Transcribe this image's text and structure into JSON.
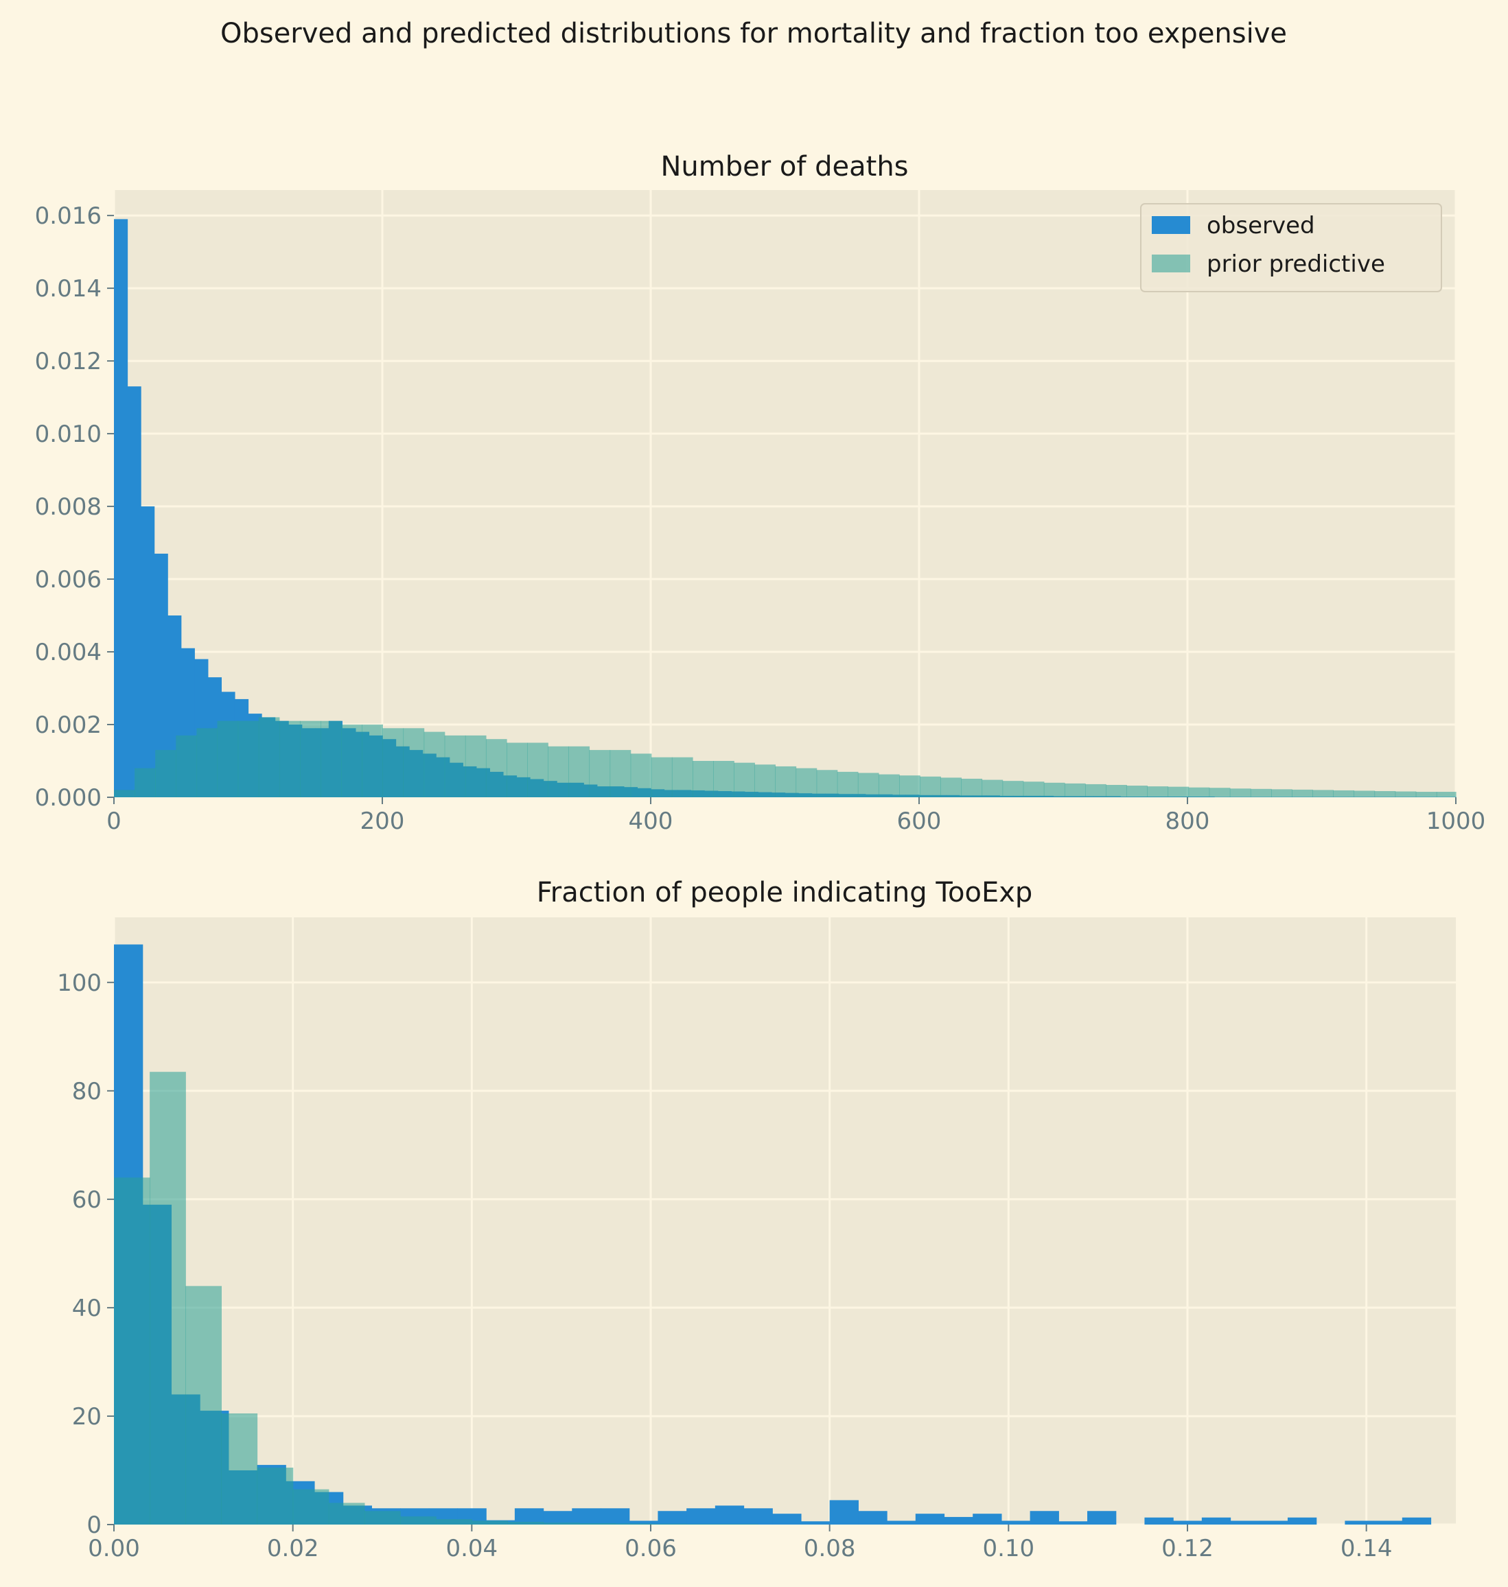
{
  "suptitle": "Observed and predicted distributions for mortality and fraction too expensive",
  "colors": {
    "figure_bg": "#fdf6e3",
    "axes_bg": "#eee8d5",
    "grid": "#fdf6e3",
    "observed": "#268bd2",
    "prior_predictive": "#2aa198",
    "prior_predictive_alpha": 0.55,
    "tick_text": "#657b83"
  },
  "chart_data": [
    {
      "type": "bar",
      "histogram": true,
      "title": "Number of deaths",
      "xlim": [
        0,
        1000
      ],
      "ylim": [
        0,
        0.0167
      ],
      "xticks": [
        0,
        200,
        400,
        600,
        800,
        1000
      ],
      "xtick_labels": [
        "0",
        "200",
        "400",
        "600",
        "800",
        "1000"
      ],
      "yticks": [
        0,
        0.002,
        0.004,
        0.006,
        0.008,
        0.01,
        0.012,
        0.014,
        0.016
      ],
      "ytick_labels": [
        "0.000",
        "0.002",
        "0.004",
        "0.006",
        "0.008",
        "0.010",
        "0.012",
        "0.014",
        "0.016"
      ],
      "grid": true,
      "legend": {
        "placement": "upper-right",
        "entries": [
          "observed",
          "prior predictive"
        ]
      },
      "series": [
        {
          "name": "observed",
          "bin_start": 0,
          "bin_width": 10,
          "values": [
            0.0159,
            0.0113,
            0.008,
            0.0067,
            0.005,
            0.0041,
            0.0038,
            0.0033,
            0.0029,
            0.0027,
            0.0023,
            0.0022,
            0.0021,
            0.002,
            0.0019,
            0.0019,
            0.0021,
            0.0019,
            0.0018,
            0.0017,
            0.0016,
            0.0014,
            0.0013,
            0.0012,
            0.0011,
            0.00095,
            0.00085,
            0.0008,
            0.0007,
            0.0006,
            0.00055,
            0.0005,
            0.00045,
            0.0004,
            0.0004,
            0.00035,
            0.0003,
            0.0003,
            0.00028,
            0.00025,
            0.00022,
            0.0002,
            0.0002,
            0.00019,
            0.00018,
            0.00017,
            0.00016,
            0.00015,
            0.00014,
            0.00013,
            0.00012,
            0.00011,
            0.0001,
            0.0001,
            9e-05,
            9e-05,
            8e-05,
            8e-05,
            7e-05,
            7e-05,
            6e-05,
            6e-05,
            6e-05,
            5e-05,
            5e-05,
            5e-05,
            4e-05,
            4e-05,
            4e-05,
            4e-05,
            3e-05,
            3e-05,
            3e-05,
            3e-05,
            3e-05,
            2e-05,
            2e-05,
            2e-05,
            2e-05,
            2e-05,
            2e-05,
            2e-05,
            1e-05,
            1e-05,
            1e-05,
            1e-05,
            1e-05,
            1e-05,
            1e-05,
            1e-05,
            1e-05,
            1e-05,
            1e-05,
            1e-05,
            1e-05,
            1e-05,
            1e-05,
            1e-05,
            1e-05,
            1e-05
          ]
        },
        {
          "name": "prior predictive",
          "bin_start": 0,
          "bin_width": 15.4,
          "values": [
            0.0002,
            0.0008,
            0.0013,
            0.0017,
            0.0019,
            0.0021,
            0.0021,
            0.0022,
            0.0021,
            0.0021,
            0.0021,
            0.002,
            0.002,
            0.0019,
            0.0019,
            0.0018,
            0.0017,
            0.0017,
            0.0016,
            0.0015,
            0.0015,
            0.0014,
            0.0014,
            0.0013,
            0.0013,
            0.0012,
            0.0011,
            0.0011,
            0.001,
            0.001,
            0.00095,
            0.0009,
            0.00085,
            0.0008,
            0.00075,
            0.0007,
            0.00067,
            0.00063,
            0.0006,
            0.00057,
            0.00054,
            0.00051,
            0.00048,
            0.00045,
            0.00043,
            0.0004,
            0.00038,
            0.00036,
            0.00034,
            0.00032,
            0.0003,
            0.00029,
            0.00027,
            0.00026,
            0.00024,
            0.00023,
            0.00022,
            0.00021,
            0.0002,
            0.00019,
            0.00018,
            0.00017,
            0.00016,
            0.00015,
            0.00015
          ]
        }
      ]
    },
    {
      "type": "bar",
      "histogram": true,
      "title": "Fraction of people indicating TooExp",
      "xlim": [
        0,
        0.15
      ],
      "ylim": [
        0,
        112
      ],
      "xticks": [
        0,
        0.02,
        0.04,
        0.06,
        0.08,
        0.1,
        0.12,
        0.14
      ],
      "xtick_labels": [
        "0.00",
        "0.02",
        "0.04",
        "0.06",
        "0.08",
        "0.10",
        "0.12",
        "0.14"
      ],
      "yticks": [
        0,
        20,
        40,
        60,
        80,
        100
      ],
      "ytick_labels": [
        "0",
        "20",
        "40",
        "60",
        "80",
        "100"
      ],
      "grid": true,
      "series": [
        {
          "name": "observed",
          "bin_start": 0,
          "bin_width": 0.0032,
          "values": [
            107,
            59,
            24,
            21,
            10,
            11,
            8,
            6,
            3.5,
            3,
            3,
            3,
            3,
            0.8,
            3,
            2.5,
            3,
            3,
            0.7,
            2.5,
            3,
            3.5,
            3,
            2,
            0.6,
            4.5,
            2.5,
            0.7,
            2,
            1.4,
            2,
            0.7,
            2.5,
            0.6,
            2.5,
            0,
            1.3,
            0.7,
            1.3,
            0.7,
            0.7,
            1.3,
            0,
            0.7,
            0.7,
            1.3
          ]
        },
        {
          "name": "prior predictive",
          "bin_start": 0,
          "bin_width": 0.004,
          "values": [
            64,
            83.5,
            44,
            20.5,
            10.5,
            6.5,
            4,
            2.5,
            1.5,
            1,
            0.7,
            0.5,
            0.35,
            0.25,
            0.2,
            0.15,
            0.1,
            0.1
          ]
        }
      ]
    }
  ]
}
